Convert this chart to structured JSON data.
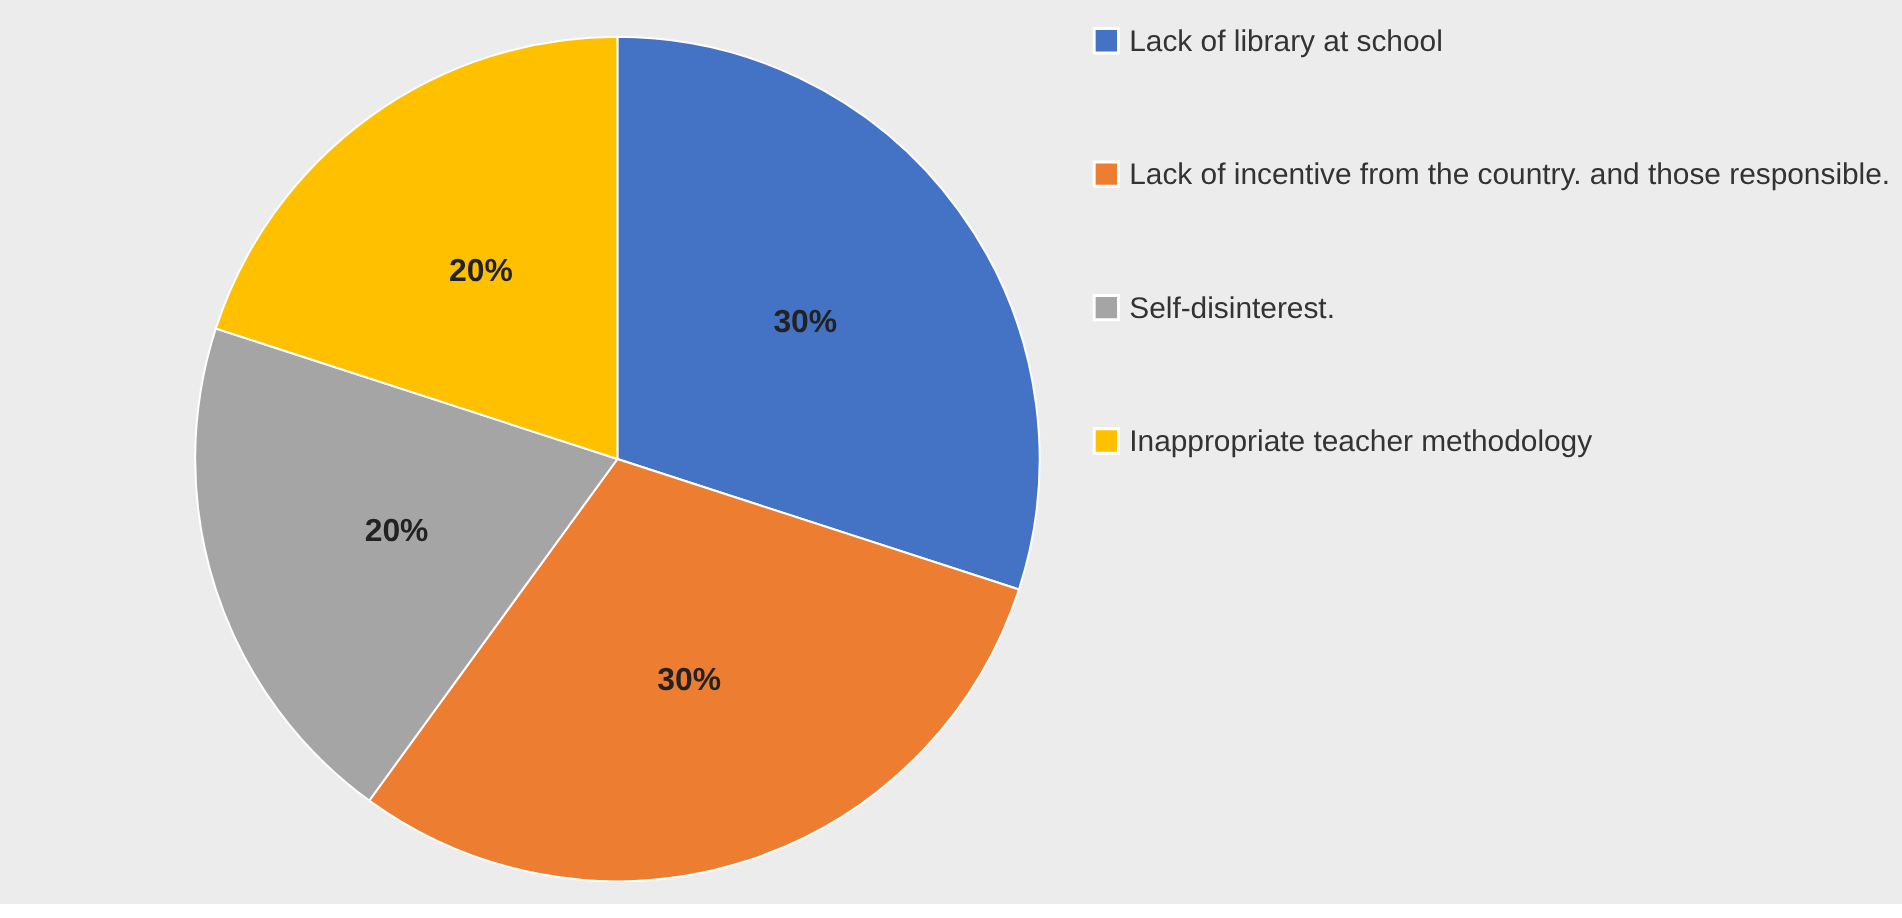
{
  "chart_data": {
    "type": "pie",
    "categories": [
      "Lack of library at school",
      "Lack of incentive from the country. and those responsible.",
      "Self-disinterest.",
      "Inappropriate teacher methodology"
    ],
    "values": [
      30,
      30,
      20,
      20
    ],
    "colors": [
      "#4472c4",
      "#ed7d31",
      "#a5a5a5",
      "#ffc000"
    ],
    "value_labels": [
      "30%",
      "30%",
      "20%",
      "20%"
    ],
    "legend": "right"
  }
}
